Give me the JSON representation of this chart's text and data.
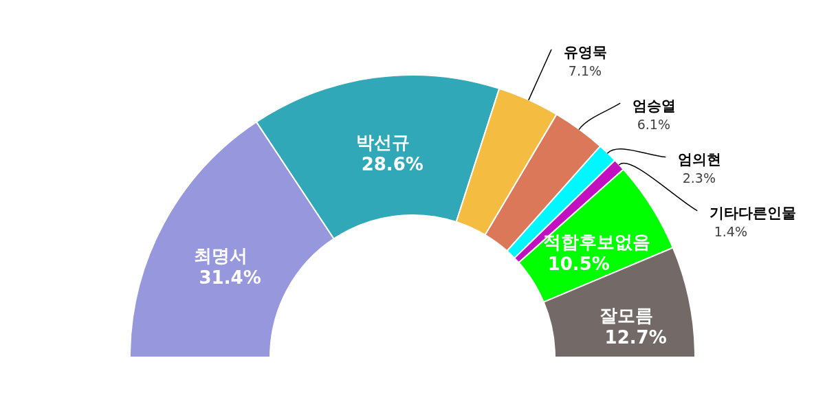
{
  "chart_data": {
    "type": "donut",
    "categories": [
      "최명서",
      "박선규",
      "유영묵",
      "엄승열",
      "엄의현",
      "기타다른인물",
      "적합후보없음",
      "잘모름"
    ],
    "values": [
      31.4,
      28.6,
      7.1,
      6.1,
      2.3,
      1.4,
      10.5,
      12.7
    ],
    "colors": [
      "#9797dd",
      "#31a8b8",
      "#f4bc41",
      "#dc785a",
      "#00f7ff",
      "#c010c0",
      "#00ff00",
      "#736a67"
    ],
    "value_labels": [
      "31.4%",
      "28.6%",
      "7.1%",
      "6.1%",
      "2.3%",
      "1.4%",
      "10.5%",
      "12.7%"
    ]
  }
}
